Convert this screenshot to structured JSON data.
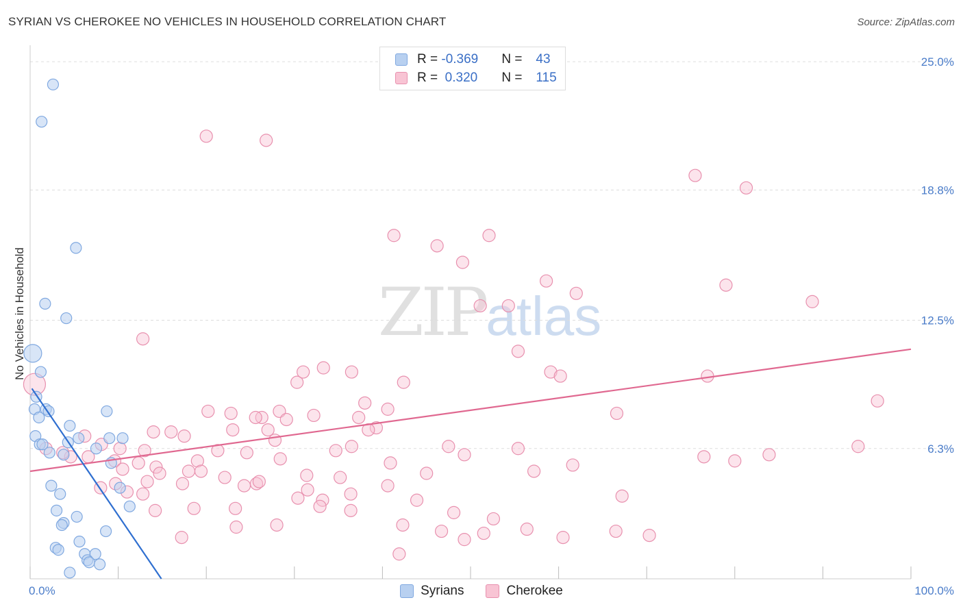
{
  "title": "SYRIAN VS CHEROKEE NO VEHICLES IN HOUSEHOLD CORRELATION CHART",
  "source": "Source: ZipAtlas.com",
  "watermark": {
    "zip": "ZIP",
    "atlas": "atlas"
  },
  "legend": {
    "rows": [
      {
        "r_label": "R = ",
        "r_value": "-0.369",
        "n_label": "N = ",
        "n_value": "43"
      },
      {
        "r_label": "R = ",
        "r_value": " 0.320",
        "n_label": "N = ",
        "n_value": "115"
      }
    ]
  },
  "bottom_legend": [
    "Syrians",
    "Cherokee"
  ],
  "colors": {
    "syrians_fill": "#b8d0f0",
    "syrians_stroke": "#7fa8e0",
    "syrians_line": "#2f6fd0",
    "cherokee_fill": "#f8c4d4",
    "cherokee_stroke": "#e890ae",
    "cherokee_line": "#e06890",
    "grid": "#dddddd",
    "tick": "#4a7cc9"
  },
  "chart_data": {
    "type": "scatter",
    "title": "SYRIAN VS CHEROKEE NO VEHICLES IN HOUSEHOLD CORRELATION CHART",
    "xlabel": "",
    "ylabel": "No Vehicles in Household",
    "xlim": [
      0,
      100
    ],
    "ylim": [
      0,
      25.6
    ],
    "x_tick_labels": [
      "0.0%",
      "100.0%"
    ],
    "y_ticks": [
      6.3,
      12.5,
      18.8,
      25.0
    ],
    "y_tick_labels": [
      "6.3%",
      "12.5%",
      "18.8%",
      "25.0%"
    ],
    "legend_position": "top-center",
    "series": [
      {
        "name": "Syrians",
        "R": -0.369,
        "N": 43,
        "trend": {
          "x": [
            0.2,
            14.9
          ],
          "y": [
            9.2,
            0.0
          ]
        },
        "points": [
          [
            2.6,
            23.9
          ],
          [
            1.3,
            22.1
          ],
          [
            5.2,
            16.0
          ],
          [
            1.7,
            13.3
          ],
          [
            4.1,
            12.6
          ],
          [
            0.3,
            10.9
          ],
          [
            1.2,
            10.0
          ],
          [
            0.7,
            8.8
          ],
          [
            0.5,
            8.2
          ],
          [
            1.8,
            8.2
          ],
          [
            2.1,
            8.1
          ],
          [
            8.7,
            8.1
          ],
          [
            1.0,
            7.8
          ],
          [
            4.5,
            7.4
          ],
          [
            0.6,
            6.9
          ],
          [
            5.5,
            6.8
          ],
          [
            9.0,
            6.8
          ],
          [
            10.5,
            6.8
          ],
          [
            4.3,
            6.6
          ],
          [
            7.5,
            6.3
          ],
          [
            1.1,
            6.5
          ],
          [
            2.2,
            6.1
          ],
          [
            3.8,
            6.0
          ],
          [
            9.2,
            5.6
          ],
          [
            2.4,
            4.5
          ],
          [
            3.4,
            4.1
          ],
          [
            10.2,
            4.4
          ],
          [
            11.3,
            3.5
          ],
          [
            3.0,
            3.3
          ],
          [
            5.3,
            3.0
          ],
          [
            3.8,
            2.7
          ],
          [
            3.6,
            2.6
          ],
          [
            8.6,
            2.3
          ],
          [
            5.6,
            1.8
          ],
          [
            2.9,
            1.5
          ],
          [
            3.2,
            1.4
          ],
          [
            6.2,
            1.2
          ],
          [
            7.4,
            1.2
          ],
          [
            6.5,
            0.9
          ],
          [
            6.7,
            0.8
          ],
          [
            7.9,
            0.7
          ],
          [
            4.5,
            0.3
          ],
          [
            1.4,
            6.5
          ]
        ]
      },
      {
        "name": "Cherokee",
        "R": 0.32,
        "N": 115,
        "trend": {
          "x": [
            0.0,
            100.0
          ],
          "y": [
            5.2,
            11.1
          ]
        },
        "points": [
          [
            20.0,
            21.4
          ],
          [
            26.8,
            21.2
          ],
          [
            75.5,
            19.5
          ],
          [
            81.3,
            18.9
          ],
          [
            41.3,
            16.6
          ],
          [
            46.2,
            16.1
          ],
          [
            52.1,
            16.6
          ],
          [
            49.1,
            15.3
          ],
          [
            58.6,
            14.4
          ],
          [
            62.0,
            13.8
          ],
          [
            79.0,
            14.2
          ],
          [
            88.8,
            13.4
          ],
          [
            51.1,
            13.2
          ],
          [
            54.3,
            13.2
          ],
          [
            12.8,
            11.6
          ],
          [
            55.4,
            11.0
          ],
          [
            33.3,
            10.2
          ],
          [
            36.5,
            10.0
          ],
          [
            30.3,
            9.5
          ],
          [
            31.0,
            10.0
          ],
          [
            42.4,
            9.5
          ],
          [
            59.1,
            10.0
          ],
          [
            60.2,
            9.8
          ],
          [
            76.9,
            9.8
          ],
          [
            38.0,
            8.5
          ],
          [
            96.2,
            8.6
          ],
          [
            20.2,
            8.1
          ],
          [
            22.8,
            8.0
          ],
          [
            26.3,
            7.8
          ],
          [
            28.3,
            8.1
          ],
          [
            32.2,
            7.9
          ],
          [
            37.3,
            7.8
          ],
          [
            40.6,
            8.2
          ],
          [
            25.6,
            7.8
          ],
          [
            29.1,
            7.7
          ],
          [
            66.6,
            8.0
          ],
          [
            39.3,
            7.3
          ],
          [
            27.0,
            7.2
          ],
          [
            14.0,
            7.1
          ],
          [
            16.0,
            7.1
          ],
          [
            17.5,
            6.9
          ],
          [
            23.0,
            7.2
          ],
          [
            38.4,
            7.2
          ],
          [
            27.8,
            6.7
          ],
          [
            6.2,
            6.9
          ],
          [
            8.1,
            6.5
          ],
          [
            10.2,
            6.3
          ],
          [
            13.0,
            6.2
          ],
          [
            21.3,
            6.2
          ],
          [
            24.6,
            6.1
          ],
          [
            36.5,
            6.4
          ],
          [
            34.7,
            6.2
          ],
          [
            47.5,
            6.4
          ],
          [
            55.4,
            6.3
          ],
          [
            49.3,
            6.0
          ],
          [
            76.5,
            5.9
          ],
          [
            80.0,
            5.7
          ],
          [
            83.9,
            6.0
          ],
          [
            94.0,
            6.4
          ],
          [
            18.0,
            5.2
          ],
          [
            19.0,
            5.7
          ],
          [
            28.4,
            5.8
          ],
          [
            6.6,
            5.9
          ],
          [
            9.6,
            5.7
          ],
          [
            12.3,
            5.6
          ],
          [
            14.3,
            5.4
          ],
          [
            10.5,
            5.3
          ],
          [
            14.7,
            5.1
          ],
          [
            19.4,
            5.2
          ],
          [
            22.1,
            4.9
          ],
          [
            25.7,
            4.6
          ],
          [
            31.4,
            5.0
          ],
          [
            35.2,
            4.9
          ],
          [
            40.9,
            5.6
          ],
          [
            45.0,
            5.1
          ],
          [
            57.2,
            5.2
          ],
          [
            61.6,
            5.5
          ],
          [
            67.2,
            4.0
          ],
          [
            13.3,
            4.7
          ],
          [
            11.0,
            4.2
          ],
          [
            8.0,
            4.4
          ],
          [
            17.3,
            4.6
          ],
          [
            24.3,
            4.5
          ],
          [
            26.0,
            4.7
          ],
          [
            30.4,
            3.9
          ],
          [
            31.5,
            4.3
          ],
          [
            33.2,
            3.8
          ],
          [
            36.4,
            4.1
          ],
          [
            40.6,
            4.5
          ],
          [
            43.9,
            3.8
          ],
          [
            48.1,
            3.2
          ],
          [
            52.6,
            2.9
          ],
          [
            14.2,
            3.3
          ],
          [
            18.6,
            3.4
          ],
          [
            23.3,
            3.4
          ],
          [
            28.0,
            2.6
          ],
          [
            32.9,
            3.5
          ],
          [
            36.4,
            3.3
          ],
          [
            42.3,
            2.6
          ],
          [
            46.7,
            2.3
          ],
          [
            51.5,
            2.2
          ],
          [
            56.4,
            2.4
          ],
          [
            60.5,
            2.0
          ],
          [
            66.5,
            2.3
          ],
          [
            70.3,
            2.1
          ],
          [
            49.3,
            1.9
          ],
          [
            41.9,
            1.2
          ],
          [
            23.4,
            2.5
          ],
          [
            17.2,
            2.0
          ],
          [
            12.8,
            4.1
          ],
          [
            9.7,
            4.6
          ],
          [
            4.6,
            5.9
          ],
          [
            3.7,
            6.1
          ],
          [
            1.8,
            6.3
          ],
          [
            0.5,
            9.4
          ]
        ]
      }
    ]
  }
}
